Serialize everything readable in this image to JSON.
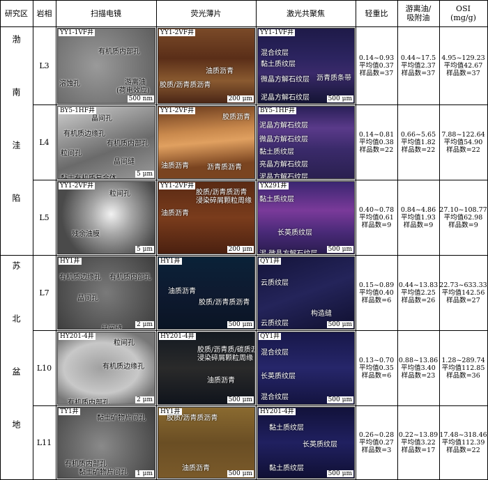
{
  "header": [
    "研究区",
    "岩相",
    "扫描电镜",
    "荧光薄片",
    "激光共聚焦",
    "轻重比",
    [
      "游离油/",
      "吸附油"
    ],
    [
      "OSI",
      "(mg/g)"
    ]
  ],
  "regions": [
    "渤南洼陷",
    "苏北盆地"
  ],
  "rows": [
    {
      "facies": "L3",
      "sem": {
        "well": "YY1-1VF井",
        "notes": [
          "有机质内部孔",
          "溶蚀孔",
          "游离油",
          "(荷电效应)"
        ],
        "scale": "500 nm"
      },
      "fluo": {
        "well": "YY1-2VF井",
        "notes": [
          "油质沥青",
          "胶质/沥青质沥青"
        ],
        "scale": "200 μm"
      },
      "clsm": {
        "well": "YY1-1VF井",
        "notes": [
          "混合纹层",
          "黏土质纹层",
          "沥青质条带",
          "微晶方解石纹层",
          "泥晶方解石纹层"
        ],
        "scale": "500 μm"
      },
      "stats": [
        [
          "0.14~0.93",
          "平均值0.37",
          "样品数=37"
        ],
        [
          "0.44~17.5",
          "平均值2.37",
          "样品数=37"
        ],
        [
          "4.95~129.23",
          "平均值42.67",
          "样品数=37"
        ]
      ]
    },
    {
      "facies": "L4",
      "sem": {
        "well": "BY5-1HF井",
        "notes": [
          "晶间孔",
          "有机质边缘孔",
          "有机质内部孔",
          "粒间孔",
          "晶间缝",
          "黏土有机质复合体"
        ],
        "scale": "5 μm"
      },
      "fluo": {
        "well": "YY1-2VF井",
        "notes": [
          "胶质沥青",
          "油质沥青",
          "沥青质沥青"
        ]
      },
      "clsm": {
        "well": "BY5-1HF井",
        "notes": [
          "泥晶方解石纹层",
          "微晶方解石纹层",
          "黏土质纹层",
          "亮晶方解石纹层",
          "泥晶方解石纹层"
        ]
      },
      "stats": [
        [
          "0.14~0.81",
          "平均值0.38",
          "样品数=22"
        ],
        [
          "0.66~5.65",
          "平均值1.82",
          "样品数=22"
        ],
        [
          "7.88~122.64",
          "平均值54.90",
          "样品数=22"
        ]
      ]
    },
    {
      "facies": "L5",
      "sem": {
        "well": "YY1-2VF井",
        "notes": [
          "粒间孔",
          "残余油膜"
        ],
        "scale": "5 μm"
      },
      "fluo": {
        "well": "YY1-2VF井",
        "notes": [
          "胶质/沥青质沥青",
          "浸染碎屑颗粒周缘",
          "油质沥青"
        ],
        "scale": "200 μm"
      },
      "clsm": {
        "well": "YX291井",
        "notes": [
          "黏土质纹层",
          "长英质纹层",
          "泥-微晶方解石纹层"
        ],
        "scale": "500 μm"
      },
      "stats": [
        [
          "0.40~0.78",
          "平均值0.61",
          "样品数=9"
        ],
        [
          "0.84~4.86",
          "平均值1.93",
          "样品数=9"
        ],
        [
          "27.10~108.77",
          "平均值62.98",
          "样品数=9"
        ]
      ]
    },
    {
      "facies": "L7",
      "sem": {
        "well": "HY1井",
        "notes": [
          "有机质边缘孔",
          "有机质内部孔",
          "晶间孔",
          "晶间缝"
        ],
        "scale": "2 μm"
      },
      "fluo": {
        "well": "HY1井",
        "notes": [
          "油质沥青",
          "胶质/沥青质沥青"
        ],
        "scale": "500 μm"
      },
      "clsm": {
        "well": "QY1井",
        "notes": [
          "云质纹层",
          "构造缝",
          "云质纹层"
        ],
        "scale": "500 μm"
      },
      "stats": [
        [
          "0.15~0.89",
          "平均值0.40",
          "样品数=6"
        ],
        [
          "0.44~13.83",
          "平均值2.25",
          "样品数=26"
        ],
        [
          "22.73~633.33",
          "平均值142.56",
          "样品数=27"
        ]
      ]
    },
    {
      "facies": "L10",
      "sem": {
        "well": "HY201-4井",
        "notes": [
          "粒间孔",
          "有机质边缘孔",
          "有机质内部孔"
        ],
        "scale": "2 μm"
      },
      "fluo": {
        "well": "HY201-4井",
        "notes": [
          "胶质/沥青质/碳质沥青",
          "浸染碎屑颗粒周缘",
          "油质沥青"
        ],
        "scale": "500 μm"
      },
      "clsm": {
        "well": "QY1井",
        "notes": [
          "混合纹层",
          "长英质纹层",
          "混合纹层"
        ],
        "scale": "500 μm"
      },
      "stats": [
        [
          "0.13~0.70",
          "平均值0.35",
          "样品数=6"
        ],
        [
          "0.88~13.86",
          "平均值3.40",
          "样品数=23"
        ],
        [
          "1.28~289.74",
          "平均值112.85",
          "样品数=36"
        ]
      ]
    },
    {
      "facies": "L11",
      "sem": {
        "well": "TY1井",
        "notes": [
          "黏土矿物片间孔",
          "有机质内部孔",
          "黏土矿物片间孔"
        ],
        "scale": "1 μm"
      },
      "fluo": {
        "well": "HY1井",
        "notes": [
          "胶质/沥青质沥青",
          "油质沥青"
        ],
        "scale": "500 μm"
      },
      "clsm": {
        "well": "HY201-4井",
        "notes": [
          "黏土质纹层",
          "长英质纹层",
          "黏土质纹层"
        ],
        "scale": "500 μm"
      },
      "stats": [
        [
          "0.26~0.28",
          "平均值0.27",
          "样品数=3"
        ],
        [
          "0.22~13.89",
          "平均值3.22",
          "样品数=17"
        ],
        [
          "17.48~318.46",
          "平均值112.39",
          "样品数=22"
        ]
      ]
    }
  ]
}
